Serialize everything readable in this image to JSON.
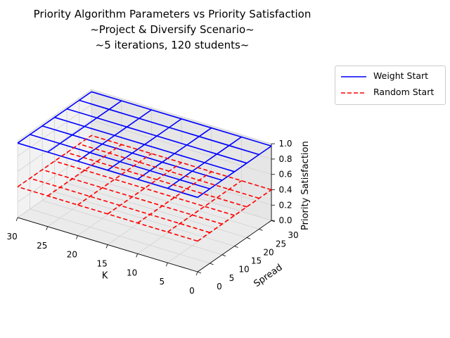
{
  "title_lines": [
    "Priority Algorithm Parameters vs Priority Satisfaction",
    "~Project & Diversify Scenario~",
    "~5 iterations, 120 students~"
  ],
  "chart_data": {
    "type": "3d-wireframe",
    "title": "Priority Algorithm Parameters vs Priority Satisfaction ~Project & Diversify Scenario~ ~5 iterations, 120 students~",
    "xlabel": "K",
    "ylabel": "Spread",
    "zlabel": "Priority Satisfaction",
    "xlim": [
      0,
      30
    ],
    "ylim": [
      0,
      30
    ],
    "zlim": [
      0,
      1.0
    ],
    "x_ticks": [
      "0",
      "5",
      "10",
      "15",
      "20",
      "25",
      "30"
    ],
    "y_ticks": [
      "0",
      "5",
      "10",
      "15",
      "20",
      "25",
      "30"
    ],
    "z_ticks": [
      "0.0",
      "0.2",
      "0.4",
      "0.6",
      "0.8",
      "1.0"
    ],
    "grid_k": [
      0,
      5,
      10,
      15,
      20,
      25,
      30
    ],
    "grid_spread": [
      0,
      5,
      10,
      15,
      20,
      25,
      30
    ],
    "legend_position": "upper right, outside plot",
    "series": [
      {
        "name": "Weight Start",
        "style": "solid",
        "color": "#0000ff",
        "values": [
          [
            0.97,
            0.97,
            0.97,
            0.97,
            0.97,
            0.97,
            0.97
          ],
          [
            0.97,
            0.97,
            0.97,
            0.97,
            0.97,
            0.97,
            0.97
          ],
          [
            0.97,
            0.97,
            0.97,
            0.97,
            0.97,
            0.97,
            0.97
          ],
          [
            0.97,
            0.97,
            0.97,
            0.97,
            0.97,
            0.97,
            0.97
          ],
          [
            0.97,
            0.97,
            0.97,
            0.97,
            0.97,
            0.97,
            0.97
          ],
          [
            0.97,
            0.97,
            0.97,
            0.97,
            0.97,
            0.97,
            0.97
          ],
          [
            0.97,
            0.97,
            0.97,
            0.97,
            0.97,
            0.97,
            0.97
          ]
        ]
      },
      {
        "name": "Random Start",
        "style": "dashed",
        "color": "#ff0000",
        "values": [
          [
            0.4,
            0.4,
            0.4,
            0.4,
            0.4,
            0.4,
            0.4
          ],
          [
            0.4,
            0.4,
            0.4,
            0.4,
            0.4,
            0.4,
            0.4
          ],
          [
            0.4,
            0.4,
            0.4,
            0.4,
            0.4,
            0.4,
            0.4
          ],
          [
            0.4,
            0.4,
            0.4,
            0.4,
            0.4,
            0.4,
            0.4
          ],
          [
            0.4,
            0.4,
            0.4,
            0.4,
            0.4,
            0.4,
            0.4
          ],
          [
            0.4,
            0.4,
            0.4,
            0.4,
            0.4,
            0.4,
            0.4
          ],
          [
            0.4,
            0.4,
            0.4,
            0.4,
            0.4,
            0.4,
            0.4
          ]
        ]
      }
    ]
  },
  "colors": {
    "pane_left": "#f2f2f2",
    "pane_right": "#e6e6e6",
    "pane_floor": "#ebebeb",
    "grid": "#d2d2d2"
  }
}
